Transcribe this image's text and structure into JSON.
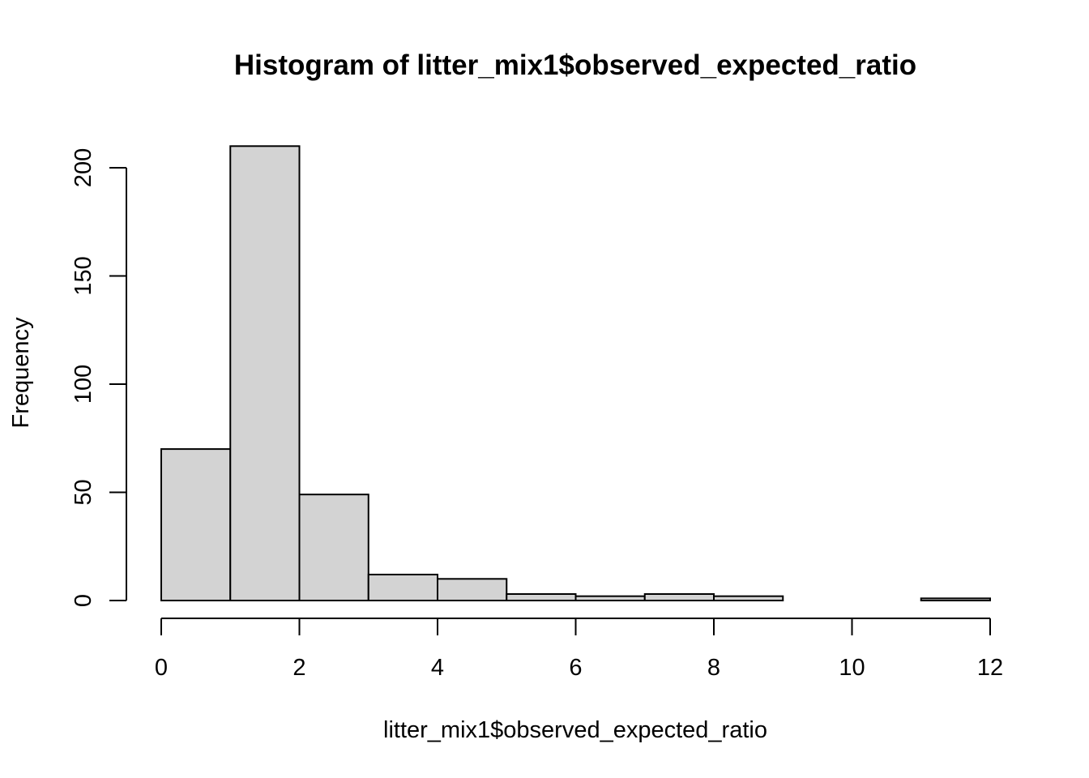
{
  "chart_data": {
    "type": "bar",
    "title": "Histogram of litter_mix1$observed_expected_ratio",
    "xlabel": "litter_mix1$observed_expected_ratio",
    "ylabel": "Frequency",
    "bins": [
      {
        "start": 0,
        "end": 1,
        "count": 70
      },
      {
        "start": 1,
        "end": 2,
        "count": 210
      },
      {
        "start": 2,
        "end": 3,
        "count": 49
      },
      {
        "start": 3,
        "end": 4,
        "count": 12
      },
      {
        "start": 4,
        "end": 5,
        "count": 10
      },
      {
        "start": 5,
        "end": 6,
        "count": 3
      },
      {
        "start": 6,
        "end": 7,
        "count": 2
      },
      {
        "start": 7,
        "end": 8,
        "count": 3
      },
      {
        "start": 8,
        "end": 9,
        "count": 2
      },
      {
        "start": 9,
        "end": 10,
        "count": 0
      },
      {
        "start": 10,
        "end": 11,
        "count": 0
      },
      {
        "start": 11,
        "end": 12,
        "count": 1
      }
    ],
    "xlim": [
      0,
      12
    ],
    "ylim": [
      0,
      210
    ],
    "x_ticks": [
      "0",
      "2",
      "4",
      "6",
      "8",
      "10",
      "12"
    ],
    "y_ticks": [
      "0",
      "50",
      "100",
      "150",
      "200"
    ],
    "bar_color": "#d3d3d3",
    "grid": false
  }
}
